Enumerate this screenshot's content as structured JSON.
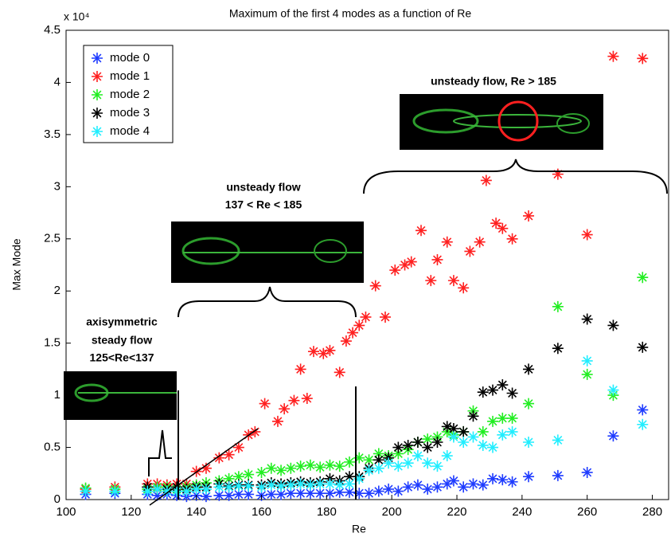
{
  "chart_data": {
    "type": "scatter",
    "title": "Maximum of the first 4 modes as a function of Re",
    "x_label": "Re",
    "y_label": "Max Mode",
    "y_multiplier": "x 10⁴",
    "xlim": [
      100,
      285
    ],
    "xticks": [
      100,
      120,
      140,
      160,
      180,
      200,
      220,
      240,
      260,
      280
    ],
    "ylim": [
      0,
      4.5
    ],
    "yticks": [
      0,
      0.5,
      1,
      1.5,
      2,
      2.5,
      3,
      3.5,
      4,
      4.5
    ],
    "legend_position": "upper left",
    "marker": "asterisk",
    "annotations": [
      "unsteady flow, Re > 185",
      "unsteady flow",
      "137 < Re < 185",
      "axisymmetric",
      "steady flow",
      "125<Re<137"
    ],
    "series": [
      {
        "name": "mode 0",
        "color": "#1f3cff",
        "x": [
          106,
          115,
          125,
          128,
          131,
          134,
          137,
          140,
          143,
          147,
          150,
          153,
          156,
          160,
          163,
          166,
          169,
          172,
          175,
          178,
          181,
          184,
          187,
          190,
          193,
          196,
          199,
          202,
          205,
          208,
          211,
          214,
          217,
          219,
          222,
          225,
          228,
          231,
          234,
          237,
          242,
          251,
          260,
          268,
          277
        ],
        "values": [
          0.05,
          0.06,
          0.05,
          0.04,
          0.05,
          0.04,
          0.03,
          0.04,
          0.03,
          0.04,
          0.04,
          0.05,
          0.05,
          0.04,
          0.05,
          0.05,
          0.06,
          0.06,
          0.06,
          0.06,
          0.06,
          0.07,
          0.07,
          0.06,
          0.06,
          0.08,
          0.1,
          0.08,
          0.12,
          0.14,
          0.1,
          0.12,
          0.15,
          0.18,
          0.12,
          0.15,
          0.14,
          0.2,
          0.19,
          0.17,
          0.22,
          0.23,
          0.26,
          0.61,
          0.86
        ]
      },
      {
        "name": "mode 1",
        "color": "#ff2020",
        "x": [
          106,
          115,
          125,
          128,
          131,
          134,
          137,
          140,
          143,
          147,
          150,
          153,
          156,
          158,
          161,
          165,
          167,
          170,
          172,
          174,
          176,
          179,
          181,
          184,
          186,
          188,
          190,
          192,
          195,
          198,
          201,
          204,
          206,
          209,
          212,
          214,
          217,
          219,
          222,
          224,
          227,
          229,
          232,
          234,
          237,
          242,
          251,
          260,
          268,
          277
        ],
        "values": [
          0.1,
          0.12,
          0.15,
          0.15,
          0.14,
          0.15,
          0.15,
          0.27,
          0.3,
          0.4,
          0.43,
          0.5,
          0.62,
          0.65,
          0.92,
          0.75,
          0.87,
          0.95,
          1.25,
          0.97,
          1.42,
          1.4,
          1.43,
          1.22,
          1.52,
          1.6,
          1.67,
          1.75,
          2.05,
          1.75,
          2.2,
          2.25,
          2.28,
          2.58,
          2.1,
          2.3,
          2.47,
          2.1,
          2.03,
          2.38,
          2.47,
          3.06,
          2.65,
          2.6,
          2.5,
          2.72,
          3.12,
          2.54,
          4.25,
          4.23
        ]
      },
      {
        "name": "mode 2",
        "color": "#22ee22",
        "x": [
          106,
          115,
          125,
          128,
          131,
          134,
          137,
          140,
          143,
          147,
          150,
          153,
          156,
          160,
          163,
          166,
          169,
          172,
          175,
          178,
          181,
          184,
          187,
          190,
          193,
          196,
          199,
          202,
          205,
          208,
          211,
          214,
          217,
          219,
          222,
          225,
          228,
          231,
          234,
          237,
          242,
          251,
          260,
          268,
          277
        ],
        "values": [
          0.11,
          0.1,
          0.1,
          0.12,
          0.12,
          0.1,
          0.12,
          0.14,
          0.16,
          0.18,
          0.2,
          0.22,
          0.24,
          0.26,
          0.3,
          0.28,
          0.3,
          0.32,
          0.33,
          0.31,
          0.33,
          0.32,
          0.36,
          0.4,
          0.38,
          0.44,
          0.42,
          0.44,
          0.48,
          0.55,
          0.58,
          0.6,
          0.65,
          0.62,
          0.65,
          0.85,
          0.65,
          0.75,
          0.78,
          0.78,
          0.92,
          1.85,
          1.2,
          1.0,
          2.13
        ]
      },
      {
        "name": "mode 3",
        "color": "#000000",
        "x": [
          125,
          128,
          131,
          134,
          137,
          140,
          143,
          147,
          150,
          153,
          156,
          160,
          163,
          166,
          169,
          172,
          175,
          178,
          181,
          184,
          187,
          190,
          193,
          196,
          199,
          202,
          205,
          208,
          211,
          214,
          217,
          219,
          222,
          225,
          228,
          231,
          234,
          237,
          242,
          251,
          260,
          268,
          277
        ],
        "values": [
          0.12,
          0.1,
          0.1,
          0.12,
          0.1,
          0.12,
          0.12,
          0.15,
          0.13,
          0.14,
          0.14,
          0.14,
          0.16,
          0.15,
          0.16,
          0.17,
          0.16,
          0.17,
          0.2,
          0.18,
          0.22,
          0.22,
          0.3,
          0.38,
          0.4,
          0.5,
          0.52,
          0.55,
          0.5,
          0.55,
          0.7,
          0.68,
          0.65,
          0.8,
          1.03,
          1.05,
          1.1,
          1.02,
          1.25,
          1.45,
          1.73,
          1.67,
          1.46
        ]
      },
      {
        "name": "mode 4",
        "color": "#22eeff",
        "x": [
          106,
          115,
          125,
          128,
          131,
          134,
          137,
          140,
          143,
          147,
          150,
          153,
          156,
          160,
          163,
          166,
          169,
          172,
          175,
          178,
          181,
          184,
          187,
          190,
          193,
          196,
          199,
          202,
          205,
          208,
          211,
          214,
          217,
          219,
          222,
          225,
          228,
          231,
          234,
          237,
          242,
          251,
          260,
          268,
          277
        ],
        "values": [
          0.08,
          0.08,
          0.08,
          0.1,
          0.08,
          0.08,
          0.08,
          0.1,
          0.1,
          0.12,
          0.12,
          0.13,
          0.13,
          0.12,
          0.14,
          0.13,
          0.14,
          0.15,
          0.14,
          0.15,
          0.15,
          0.14,
          0.15,
          0.2,
          0.28,
          0.3,
          0.35,
          0.32,
          0.35,
          0.42,
          0.35,
          0.32,
          0.42,
          0.6,
          0.55,
          0.6,
          0.52,
          0.5,
          0.62,
          0.65,
          0.55,
          0.57,
          1.33,
          1.05,
          0.72
        ]
      }
    ]
  }
}
